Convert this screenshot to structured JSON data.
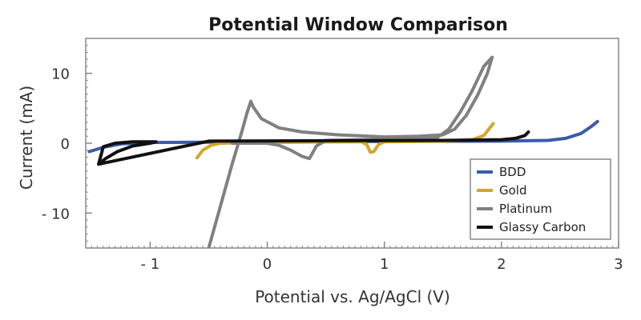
{
  "chart_data": {
    "type": "line",
    "title": "Potential Window Comparison",
    "xlabel": "Potential vs. Ag/AgCl (V)",
    "ylabel": "Current (mA)",
    "xlim": [
      -1.55,
      3.0
    ],
    "ylim": [
      -15,
      15
    ],
    "x_ticks": [
      -1,
      0,
      1,
      2,
      3
    ],
    "x_tick_labels": [
      "- 1",
      "0",
      "1",
      "2",
      "3"
    ],
    "y_ticks": [
      -10,
      0,
      10
    ],
    "y_tick_labels": [
      "- 10",
      "0",
      "10"
    ],
    "grid": false,
    "legend_position": "bottom-right",
    "series": [
      {
        "name": "BDD",
        "color": "#3a5ba8",
        "points": [
          [
            -1.52,
            -1.2
          ],
          [
            -1.4,
            -0.6
          ],
          [
            -1.25,
            -0.1
          ],
          [
            -1.0,
            0.1
          ],
          [
            0,
            0.2
          ],
          [
            1.0,
            0.25
          ],
          [
            2.0,
            0.3
          ],
          [
            2.4,
            0.4
          ],
          [
            2.55,
            0.7
          ],
          [
            2.68,
            1.4
          ],
          [
            2.76,
            2.3
          ],
          [
            2.82,
            3.1
          ]
        ]
      },
      {
        "name": "Gold",
        "color": "#d4a62a",
        "points": [
          [
            -0.6,
            -2.1
          ],
          [
            -0.55,
            -1.0
          ],
          [
            -0.48,
            -0.3
          ],
          [
            -0.4,
            0.0
          ],
          [
            0,
            0.1
          ],
          [
            0.8,
            0.2
          ],
          [
            0.85,
            -0.2
          ],
          [
            0.88,
            -1.3
          ],
          [
            0.91,
            -1.2
          ],
          [
            0.95,
            -0.2
          ],
          [
            1.0,
            0.2
          ],
          [
            1.5,
            0.3
          ],
          [
            1.75,
            0.5
          ],
          [
            1.85,
            1.1
          ],
          [
            1.93,
            2.8
          ]
        ]
      },
      {
        "name": "Platinum",
        "color": "#808080",
        "points": [
          [
            -0.5,
            -15.0
          ],
          [
            -0.4,
            -9.0
          ],
          [
            -0.3,
            -3.0
          ],
          [
            -0.22,
            1.5
          ],
          [
            -0.17,
            4.5
          ],
          [
            -0.14,
            6.0
          ],
          [
            -0.12,
            5.2
          ],
          [
            -0.05,
            3.5
          ],
          [
            0.1,
            2.2
          ],
          [
            0.3,
            1.6
          ],
          [
            0.6,
            1.2
          ],
          [
            1.0,
            0.9
          ],
          [
            1.3,
            1.0
          ],
          [
            1.5,
            1.2
          ],
          [
            1.6,
            2.0
          ],
          [
            1.7,
            4.0
          ],
          [
            1.8,
            7.0
          ],
          [
            1.88,
            10.0
          ],
          [
            1.92,
            12.3
          ],
          [
            1.85,
            11.0
          ],
          [
            1.75,
            7.5
          ],
          [
            1.65,
            4.5
          ],
          [
            1.55,
            2.0
          ],
          [
            1.45,
            0.8
          ],
          [
            1.2,
            0.6
          ],
          [
            0.8,
            0.5
          ],
          [
            0.5,
            0.4
          ],
          [
            0.42,
            -0.4
          ],
          [
            0.38,
            -1.6
          ],
          [
            0.36,
            -2.2
          ],
          [
            0.3,
            -1.9
          ],
          [
            0.2,
            -1.0
          ],
          [
            0.1,
            -0.3
          ],
          [
            0.0,
            0.0
          ],
          [
            -0.15,
            0.0
          ],
          [
            -0.3,
            0.0
          ]
        ]
      },
      {
        "name": "Glassy Carbon",
        "color": "#111111",
        "points": [
          [
            -1.44,
            -3.0
          ],
          [
            -1.38,
            -2.2
          ],
          [
            -1.28,
            -1.2
          ],
          [
            -1.15,
            -0.4
          ],
          [
            -1.0,
            0.0
          ],
          [
            -0.95,
            0.2
          ],
          [
            -1.15,
            0.2
          ],
          [
            -1.3,
            0.0
          ],
          [
            -1.4,
            -0.5
          ],
          [
            -1.44,
            -3.0
          ],
          [
            -0.5,
            0.3
          ],
          [
            0.5,
            0.35
          ],
          [
            1.5,
            0.4
          ],
          [
            2.0,
            0.5
          ],
          [
            2.12,
            0.7
          ],
          [
            2.2,
            1.1
          ],
          [
            2.23,
            1.6
          ]
        ]
      }
    ]
  }
}
